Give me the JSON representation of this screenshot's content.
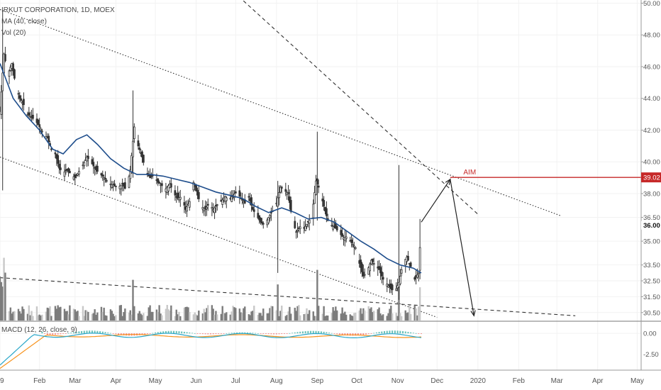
{
  "header": {
    "symbol_line": "IRKUT CORPORATION, 1D, MOEX",
    "ma_legend": "MA (40, close)",
    "vol_legend": "Vol (20)",
    "macd_legend": "MACD (12, 26, close, 9)"
  },
  "colors": {
    "up": "#26a69a",
    "down": "#ef5350",
    "candle": "#333333",
    "ma": "#1f4e8c",
    "volume": "#7c7c7c",
    "volume_light": "#c8c8c8",
    "aim": "#c62828",
    "macd": "#2aa7c9",
    "signal": "#f7931e",
    "grid": "#f2f2f2"
  },
  "chart_data": {
    "type": "candlestick",
    "symbol": "IRKUT CORPORATION",
    "interval": "1D",
    "exchange": "MOEX",
    "price_axis": {
      "range": [
        30.0,
        50.2
      ],
      "ticks": [
        "50.00",
        "48.00",
        "46.00",
        "44.00",
        "42.00",
        "40.00",
        "38.00",
        "36.50",
        "35.00",
        "33.50",
        "32.50",
        "31.50",
        "30.50"
      ],
      "tick_values": [
        50,
        48,
        46,
        44,
        42,
        40,
        38,
        36.5,
        35,
        33.5,
        32.5,
        31.5,
        30.5
      ]
    },
    "time_axis": {
      "labels": [
        "19",
        "Feb",
        "Mar",
        "Apr",
        "May",
        "Jun",
        "Jul",
        "Aug",
        "Sep",
        "Oct",
        "Nov",
        "Dec",
        "2020",
        "Feb",
        "Mar",
        "Apr",
        "May"
      ],
      "label_days": [
        0,
        30,
        57,
        88,
        118,
        149,
        179,
        210,
        241,
        271,
        302,
        332,
        363,
        394,
        423,
        454,
        484
      ],
      "range_days": [
        0,
        487
      ]
    },
    "price_points": [
      {
        "day": 0,
        "price": 43.2
      },
      {
        "day": 3,
        "price": 46.8
      },
      {
        "day": 6,
        "price": 45.5
      },
      {
        "day": 9,
        "price": 46.2
      },
      {
        "day": 12,
        "price": 44.8
      },
      {
        "day": 15,
        "price": 44.0
      },
      {
        "day": 18,
        "price": 43.6
      },
      {
        "day": 21,
        "price": 43.0
      },
      {
        "day": 24,
        "price": 42.8
      },
      {
        "day": 27,
        "price": 42.6
      },
      {
        "day": 30,
        "price": 42.2
      },
      {
        "day": 33,
        "price": 41.8
      },
      {
        "day": 36,
        "price": 41.5
      },
      {
        "day": 39,
        "price": 40.8
      },
      {
        "day": 42,
        "price": 40.5
      },
      {
        "day": 45,
        "price": 39.6
      },
      {
        "day": 48,
        "price": 39.3
      },
      {
        "day": 51,
        "price": 39.5
      },
      {
        "day": 54,
        "price": 39.2
      },
      {
        "day": 57,
        "price": 39.0
      },
      {
        "day": 60,
        "price": 39.4
      },
      {
        "day": 63,
        "price": 39.8
      },
      {
        "day": 66,
        "price": 40.3
      },
      {
        "day": 69,
        "price": 40.0
      },
      {
        "day": 72,
        "price": 39.6
      },
      {
        "day": 75,
        "price": 39.3
      },
      {
        "day": 78,
        "price": 39.1
      },
      {
        "day": 81,
        "price": 38.8
      },
      {
        "day": 84,
        "price": 38.6
      },
      {
        "day": 87,
        "price": 38.5
      },
      {
        "day": 90,
        "price": 38.4
      },
      {
        "day": 93,
        "price": 38.6
      },
      {
        "day": 96,
        "price": 38.2
      },
      {
        "day": 99,
        "price": 39.5
      },
      {
        "day": 102,
        "price": 42.2
      },
      {
        "day": 105,
        "price": 41.0
      },
      {
        "day": 108,
        "price": 40.3
      },
      {
        "day": 111,
        "price": 39.3
      },
      {
        "day": 114,
        "price": 39.0
      },
      {
        "day": 117,
        "price": 39.2
      },
      {
        "day": 120,
        "price": 38.7
      },
      {
        "day": 123,
        "price": 38.5
      },
      {
        "day": 126,
        "price": 38.3
      },
      {
        "day": 129,
        "price": 38.6
      },
      {
        "day": 132,
        "price": 38.0
      },
      {
        "day": 135,
        "price": 37.7
      },
      {
        "day": 138,
        "price": 37.8
      },
      {
        "day": 141,
        "price": 37.0
      },
      {
        "day": 144,
        "price": 37.5
      },
      {
        "day": 147,
        "price": 38.7
      },
      {
        "day": 150,
        "price": 37.9
      },
      {
        "day": 153,
        "price": 37.2
      },
      {
        "day": 156,
        "price": 37.0
      },
      {
        "day": 159,
        "price": 37.4
      },
      {
        "day": 162,
        "price": 37.0
      },
      {
        "day": 165,
        "price": 37.3
      },
      {
        "day": 168,
        "price": 37.5
      },
      {
        "day": 171,
        "price": 37.8
      },
      {
        "day": 174,
        "price": 37.6
      },
      {
        "day": 177,
        "price": 37.9
      },
      {
        "day": 180,
        "price": 38.1
      },
      {
        "day": 183,
        "price": 37.7
      },
      {
        "day": 186,
        "price": 37.4
      },
      {
        "day": 189,
        "price": 37.8
      },
      {
        "day": 192,
        "price": 37.0
      },
      {
        "day": 195,
        "price": 36.6
      },
      {
        "day": 198,
        "price": 36.2
      },
      {
        "day": 201,
        "price": 36.0
      },
      {
        "day": 204,
        "price": 36.5
      },
      {
        "day": 207,
        "price": 36.9
      },
      {
        "day": 210,
        "price": 37.4
      },
      {
        "day": 213,
        "price": 38.4
      },
      {
        "day": 216,
        "price": 38.2
      },
      {
        "day": 219,
        "price": 38.0
      },
      {
        "day": 222,
        "price": 36.3
      },
      {
        "day": 225,
        "price": 35.6
      },
      {
        "day": 228,
        "price": 35.9
      },
      {
        "day": 231,
        "price": 35.8
      },
      {
        "day": 234,
        "price": 36.2
      },
      {
        "day": 237,
        "price": 36.6
      },
      {
        "day": 240,
        "price": 38.8
      },
      {
        "day": 243,
        "price": 38.2
      },
      {
        "day": 246,
        "price": 37.2
      },
      {
        "day": 249,
        "price": 36.3
      },
      {
        "day": 252,
        "price": 36.0
      },
      {
        "day": 255,
        "price": 35.8
      },
      {
        "day": 258,
        "price": 35.5
      },
      {
        "day": 261,
        "price": 35.2
      },
      {
        "day": 264,
        "price": 35.3
      },
      {
        "day": 267,
        "price": 34.9
      },
      {
        "day": 270,
        "price": 34.6
      },
      {
        "day": 273,
        "price": 33.6
      },
      {
        "day": 276,
        "price": 32.8
      },
      {
        "day": 279,
        "price": 33.1
      },
      {
        "day": 282,
        "price": 33.8
      },
      {
        "day": 285,
        "price": 33.5
      },
      {
        "day": 288,
        "price": 33.2
      },
      {
        "day": 291,
        "price": 32.6
      },
      {
        "day": 294,
        "price": 32.3
      },
      {
        "day": 297,
        "price": 32.0
      },
      {
        "day": 300,
        "price": 31.8
      },
      {
        "day": 303,
        "price": 32.4
      },
      {
        "day": 306,
        "price": 33.6
      },
      {
        "day": 309,
        "price": 34.0
      },
      {
        "day": 312,
        "price": 33.4
      },
      {
        "day": 315,
        "price": 32.6
      },
      {
        "day": 318,
        "price": 33.0
      },
      {
        "day": 320,
        "price": 36.2
      }
    ],
    "ma_points": [
      {
        "day": 0,
        "price": 46.2
      },
      {
        "day": 10,
        "price": 44.0
      },
      {
        "day": 20,
        "price": 42.9
      },
      {
        "day": 30,
        "price": 42.0
      },
      {
        "day": 40,
        "price": 40.8
      },
      {
        "day": 48,
        "price": 40.5
      },
      {
        "day": 58,
        "price": 41.4
      },
      {
        "day": 66,
        "price": 41.7
      },
      {
        "day": 74,
        "price": 41.1
      },
      {
        "day": 84,
        "price": 40.2
      },
      {
        "day": 94,
        "price": 39.6
      },
      {
        "day": 104,
        "price": 39.2
      },
      {
        "day": 114,
        "price": 39.2
      },
      {
        "day": 124,
        "price": 39.1
      },
      {
        "day": 134,
        "price": 38.9
      },
      {
        "day": 144,
        "price": 38.7
      },
      {
        "day": 154,
        "price": 38.4
      },
      {
        "day": 164,
        "price": 38.1
      },
      {
        "day": 174,
        "price": 37.9
      },
      {
        "day": 184,
        "price": 37.7
      },
      {
        "day": 194,
        "price": 37.2
      },
      {
        "day": 204,
        "price": 36.8
      },
      {
        "day": 214,
        "price": 37.1
      },
      {
        "day": 224,
        "price": 36.8
      },
      {
        "day": 234,
        "price": 36.4
      },
      {
        "day": 244,
        "price": 36.5
      },
      {
        "day": 254,
        "price": 36.2
      },
      {
        "day": 264,
        "price": 35.6
      },
      {
        "day": 274,
        "price": 35.0
      },
      {
        "day": 284,
        "price": 34.5
      },
      {
        "day": 294,
        "price": 33.9
      },
      {
        "day": 304,
        "price": 33.5
      },
      {
        "day": 314,
        "price": 33.3
      },
      {
        "day": 320,
        "price": 33.0
      }
    ],
    "spikes": [
      {
        "day": 2,
        "low": 38.2,
        "high": 49.5
      },
      {
        "day": 101,
        "low": 39.0,
        "high": 44.5
      },
      {
        "day": 211,
        "low": 33.0,
        "high": 38.8
      },
      {
        "day": 241,
        "low": 36.3,
        "high": 41.9
      },
      {
        "day": 303,
        "low": 31.3,
        "high": 39.8
      },
      {
        "day": 319,
        "low": 32.6,
        "high": 36.4
      }
    ],
    "annotations": {
      "aim_label": "AIM",
      "aim_price_label": "39.02",
      "aim_price": 39.02,
      "last_price_label": "36.00",
      "last_price": 36.0,
      "projection_path": [
        {
          "day": 320,
          "price": 36.2
        },
        {
          "day": 342,
          "price": 38.9
        },
        {
          "day": 360,
          "price": 30.3
        }
      ]
    },
    "trendlines": {
      "channel_upper": [
        {
          "day": 0,
          "price": 49.6
        },
        {
          "day": 426,
          "price": 36.6
        }
      ],
      "channel_lower": [
        {
          "day": 0,
          "price": 40.3
        },
        {
          "day": 332,
          "price": 30.2
        }
      ],
      "falling_dashed": [
        {
          "day": 167,
          "price": 51.5
        },
        {
          "day": 363,
          "price": 36.7
        }
      ],
      "support_dashed": [
        {
          "day": 0,
          "price": 32.7
        },
        {
          "day": 437,
          "price": 30.3
        }
      ]
    },
    "volume": {
      "label": "Vol (20)"
    },
    "macd": {
      "label": "MACD (12, 26, close, 9)",
      "ticks": [
        "0.00",
        "-2.50"
      ],
      "tick_values": [
        0,
        -2.5
      ],
      "range": [
        -4.4,
        1.2
      ]
    }
  }
}
